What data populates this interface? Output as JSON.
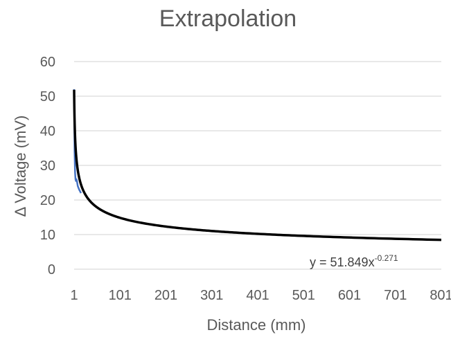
{
  "chart_data": {
    "type": "line",
    "title": "Extrapolation",
    "xlabel": "Distance (mm)",
    "ylabel": "Δ Voltage (mV)",
    "xlim": [
      1,
      801
    ],
    "ylim": [
      0,
      60
    ],
    "x_ticks": [
      "1",
      "101",
      "201",
      "301",
      "401",
      "501",
      "601",
      "701",
      "801"
    ],
    "y_ticks": [
      "0",
      "10",
      "20",
      "30",
      "40",
      "50",
      "60"
    ],
    "grid": "horizontal",
    "legend": "none",
    "series": [
      {
        "color": "#4472c4",
        "points": [
          [
            1,
            52
          ],
          [
            2,
            34
          ],
          [
            3,
            28
          ],
          [
            4,
            26
          ],
          [
            5,
            25.5
          ],
          [
            6,
            26
          ],
          [
            7,
            25.5
          ],
          [
            9,
            24
          ],
          [
            12,
            23
          ],
          [
            16,
            22
          ]
        ]
      },
      {
        "color": "#000000",
        "trendline": "power",
        "coefficient": 51.849,
        "exponent": -0.271,
        "x_range": [
          1,
          801
        ]
      }
    ],
    "annotations": {
      "equation_base": "y = 51.849x",
      "equation_exponent": "-0.271"
    }
  }
}
